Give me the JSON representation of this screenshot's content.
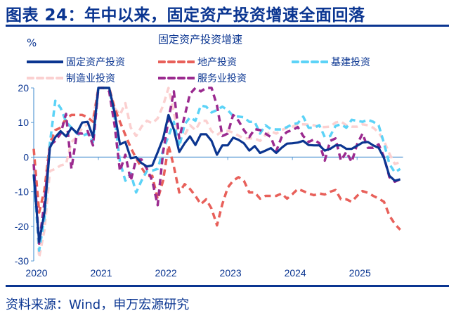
{
  "header": {
    "title": "图表 24：年中以来，固定资产投资增速全面回落"
  },
  "footer": {
    "source": "资料来源：Wind，申万宏源研究"
  },
  "colors": {
    "brand": "#0a3591",
    "axis": "#5b9bd5"
  },
  "chart_data": {
    "type": "line",
    "title": "固定资产投资增速",
    "ylabel": "%",
    "ylim": [
      -30,
      20
    ],
    "yticks": [
      "20",
      "10",
      "0",
      "-10",
      "-20",
      "-30"
    ],
    "ytick_values": [
      20,
      10,
      0,
      -10,
      -20,
      -30
    ],
    "xticks": [
      "2020",
      "2021",
      "2022",
      "2023",
      "2024",
      "2025"
    ],
    "x": [
      "2020-01",
      "2020-02",
      "2020-03",
      "2020-04",
      "2020-05",
      "2020-06",
      "2020-07",
      "2020-08",
      "2020-09",
      "2020-10",
      "2020-11",
      "2020-12",
      "2021-01",
      "2021-02",
      "2021-03",
      "2021-04",
      "2021-05",
      "2021-06",
      "2021-07",
      "2021-08",
      "2021-09",
      "2021-10",
      "2021-11",
      "2021-12",
      "2022-01",
      "2022-02",
      "2022-03",
      "2022-04",
      "2022-05",
      "2022-06",
      "2022-07",
      "2022-08",
      "2022-09",
      "2022-10",
      "2022-11",
      "2022-12",
      "2023-01",
      "2023-02",
      "2023-03",
      "2023-04",
      "2023-05",
      "2023-06",
      "2023-07",
      "2023-08",
      "2023-09",
      "2023-10",
      "2023-11",
      "2023-12",
      "2024-01",
      "2024-02",
      "2024-03",
      "2024-04",
      "2024-05",
      "2024-06",
      "2024-07",
      "2024-08",
      "2024-09",
      "2024-10",
      "2024-11",
      "2024-12",
      "2025-01",
      "2025-02",
      "2025-03",
      "2025-04",
      "2025-05",
      "2025-06",
      "2025-07",
      "2025-08",
      "2025-09"
    ],
    "legend_placement": "top",
    "grid": false,
    "series": [
      {
        "name": "固定资产投资",
        "color": "#0b3590",
        "style": "solid",
        "values": [
          -5,
          -24.5,
          -16,
          2.7,
          5.8,
          7.5,
          6,
          8.5,
          7,
          10,
          10.2,
          5.8,
          20,
          20,
          20,
          12.9,
          3.7,
          4.4,
          -0.3,
          0,
          -1.7,
          -2.7,
          -2.4,
          1.4,
          5.4,
          12.2,
          8,
          1.5,
          4,
          6,
          3.5,
          6.6,
          6.6,
          4.7,
          0.7,
          3.4,
          3.4,
          5.6,
          5,
          4,
          1.9,
          3.2,
          1.2,
          1.9,
          2.6,
          1.2,
          2.7,
          3.9,
          4,
          4.2,
          4.7,
          3.5,
          3.4,
          3.4,
          1.9,
          2.4,
          3.4,
          3.4,
          2.4,
          2.4,
          3.3,
          4.2,
          4.4,
          3.4,
          2.7,
          -0.3,
          -5.4,
          -6.8,
          -6.4
        ]
      },
      {
        "name": "地产投资",
        "color": "#e8605a",
        "style": "dashed",
        "values": [
          2.4,
          -16,
          -9.5,
          4,
          7.8,
          8.5,
          11.2,
          12.2,
          12.2,
          12.2,
          11.5,
          10.2,
          20,
          20,
          20,
          14.2,
          10.2,
          6.4,
          2.7,
          -0.3,
          -3,
          -5.4,
          -5.4,
          -12.2,
          -6.8,
          3.4,
          -2.7,
          -10.2,
          -7.8,
          -9.2,
          -11.2,
          -13.6,
          -12.2,
          -14.9,
          -19.7,
          -13.6,
          -8.8,
          -6.8,
          -5.8,
          -6.8,
          -10.2,
          -10.2,
          -12,
          -11.2,
          -11.2,
          -11.2,
          -10.5,
          -12,
          -10.7,
          -9.2,
          -9.8,
          -10.5,
          -11,
          -10.5,
          -10.8,
          -10,
          -9.5,
          -12.2,
          -12.2,
          -12.9,
          -11.2,
          -9.8,
          -10.3,
          -11.2,
          -12,
          -12.9,
          -16.9,
          -19.3,
          -21
        ]
      },
      {
        "name": "基建投资",
        "color": "#5cd3f7",
        "style": "dashed",
        "values": [
          -5,
          -27,
          -17.6,
          4,
          16.3,
          14.2,
          10.2,
          8.5,
          6.8,
          6.1,
          6.8,
          4.4,
          20,
          20,
          20,
          11.5,
          -1.4,
          -6.8,
          -4.7,
          -10.2,
          -6.8,
          -4,
          -3.9,
          -3.4,
          2,
          6.1,
          10.2,
          3,
          9.5,
          11.5,
          10.5,
          14.9,
          14.6,
          12.9,
          13.6,
          14.6,
          13.6,
          11.9,
          11.7,
          11.5,
          10.2,
          10.2,
          6.8,
          9.2,
          8.1,
          8,
          8,
          8.7,
          9.5,
          9.8,
          11.7,
          8.5,
          8.5,
          9.2,
          5.8,
          6.1,
          9,
          9.5,
          8.5,
          10.8,
          10.5,
          10.2,
          10.8,
          10.2,
          9.2,
          4,
          -2,
          -4.4,
          -3.4
        ]
      },
      {
        "name": "制造业投资",
        "color": "#fbd0d0",
        "style": "dashed",
        "values": [
          -2,
          -29,
          -21,
          -4,
          -3.4,
          -2.4,
          -2,
          4.4,
          5.8,
          8.5,
          9.5,
          11.2,
          20,
          20,
          20,
          14.2,
          12.2,
          15.6,
          8.5,
          6.1,
          8.8,
          10.5,
          9.8,
          11.2,
          14.9,
          20,
          12.9,
          5.4,
          6.4,
          9.2,
          7.8,
          10.5,
          10.5,
          7.5,
          6.4,
          7.5,
          7.6,
          7.1,
          6.2,
          5.4,
          5.4,
          5.4,
          4.7,
          6.4,
          7.5,
          6.8,
          7.8,
          8.5,
          8.8,
          9.5,
          9.5,
          9.4,
          9.2,
          8.7,
          8.7,
          8.8,
          10,
          10.3,
          9.2,
          8.8,
          8.8,
          9.5,
          9.2,
          8.5,
          7.1,
          4.7,
          1,
          -2,
          -1.4
        ]
      },
      {
        "name": "服务业投资",
        "color": "#9b2a8f",
        "style": "dashed",
        "values": [
          -2,
          -25,
          -12.9,
          3.4,
          4.7,
          6.8,
          12.5,
          -3.4,
          6.8,
          6.8,
          7.5,
          3.4,
          20,
          20,
          19,
          9.2,
          -4,
          0.7,
          -6.8,
          -0.7,
          -0.7,
          -3.4,
          -6.8,
          -13.9,
          1.4,
          10.8,
          19,
          5.4,
          11.9,
          18.3,
          20,
          19,
          20,
          20,
          14.9,
          6.1,
          6.8,
          12.2,
          10.5,
          7.8,
          5.8,
          8.1,
          7.8,
          6.8,
          5.8,
          1.7,
          5.8,
          7.3,
          7.8,
          8.7,
          6.1,
          4.4,
          5.1,
          4,
          -1,
          4.7,
          5.4,
          -1,
          1.5,
          -1.4,
          3.7,
          6.8,
          2.7,
          2.7,
          3.7,
          0,
          -5.8,
          -7.1,
          -6.4
        ]
      }
    ]
  }
}
